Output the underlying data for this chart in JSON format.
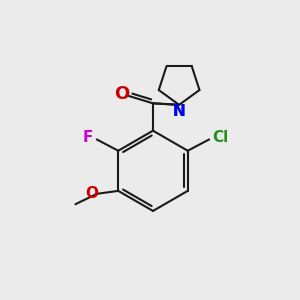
{
  "bg_color": "#ebebeb",
  "bond_color": "#1a1a1a",
  "bond_width": 1.5,
  "atom_colors": {
    "F": "#cc00cc",
    "Cl": "#228B22",
    "O_carbonyl": "#cc0000",
    "O_methoxy": "#cc0000",
    "N": "#0000ee"
  },
  "font_size": 11,
  "figsize": [
    3.0,
    3.0
  ],
  "dpi": 100
}
